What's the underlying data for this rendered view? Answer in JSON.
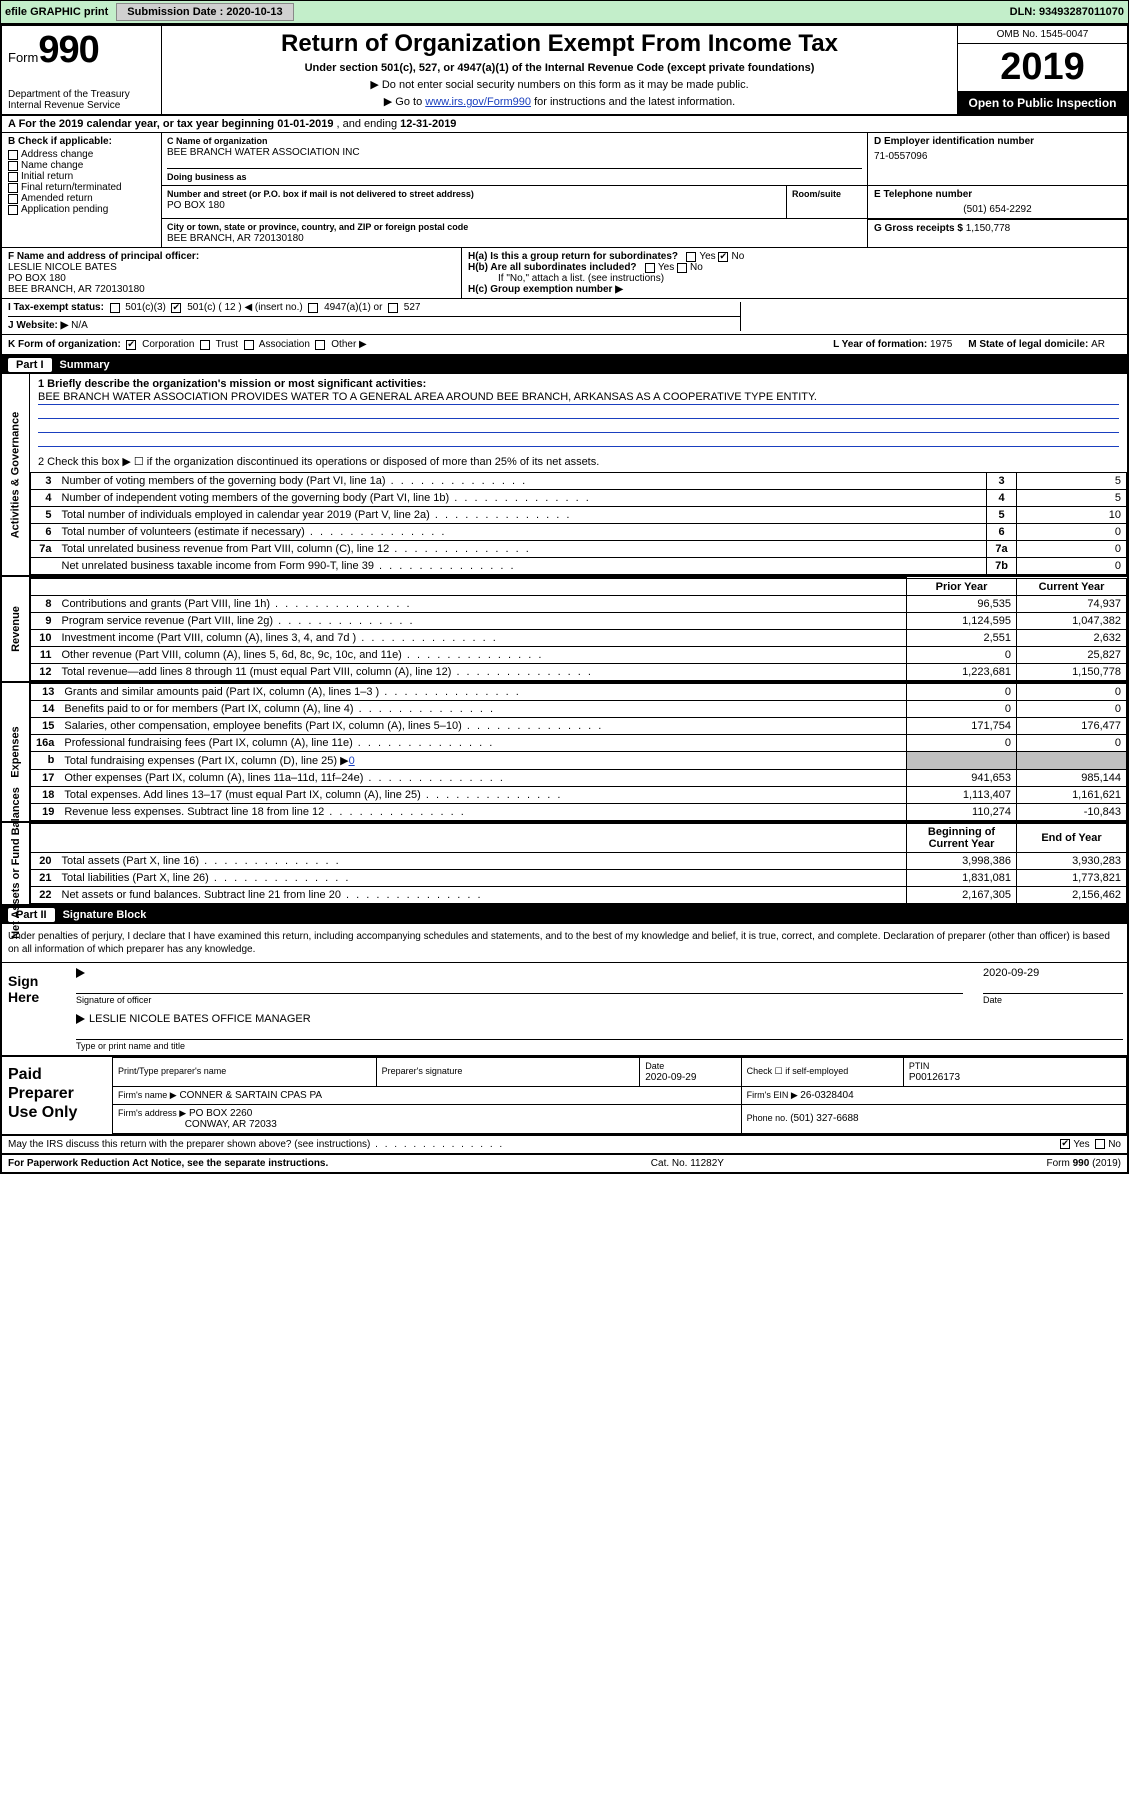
{
  "topbar": {
    "efile": "efile GRAPHIC print",
    "submission_label": "Submission Date : 2020-10-13",
    "dln": "DLN: 93493287011070"
  },
  "header": {
    "form_label": "Form",
    "form_no": "990",
    "dept": "Department of the Treasury\nInternal Revenue Service",
    "title": "Return of Organization Exempt From Income Tax",
    "subtitle": "Under section 501(c), 527, or 4947(a)(1) of the Internal Revenue Code (except private foundations)",
    "note1": "▶ Do not enter social security numbers on this form as it may be made public.",
    "note2_pre": "▶ Go to ",
    "note2_link": "www.irs.gov/Form990",
    "note2_post": " for instructions and the latest information.",
    "omb": "OMB No. 1545-0047",
    "year": "2019",
    "inspect": "Open to Public Inspection"
  },
  "rowA": {
    "text_pre": "A For the 2019 calendar year, or tax year beginning ",
    "begin": "01-01-2019",
    "mid": "   , and ending ",
    "end": "12-31-2019"
  },
  "colB": {
    "label": "B Check if applicable:",
    "items": [
      "Address change",
      "Name change",
      "Initial return",
      "Final return/terminated",
      "Amended return",
      "Application pending"
    ]
  },
  "colC": {
    "name_lbl": "C Name of organization",
    "name": "BEE BRANCH WATER ASSOCIATION INC",
    "dba_lbl": "Doing business as",
    "addr_lbl": "Number and street (or P.O. box if mail is not delivered to street address)",
    "room_lbl": "Room/suite",
    "addr": "PO BOX 180",
    "city_lbl": "City or town, state or province, country, and ZIP or foreign postal code",
    "city": "BEE BRANCH, AR  720130180"
  },
  "colD": {
    "ein_lbl": "D Employer identification number",
    "ein": "71-0557096",
    "tel_lbl": "E Telephone number",
    "tel": "(501) 654-2292",
    "gross_lbl": "G Gross receipts $ ",
    "gross": "1,150,778"
  },
  "rowF": {
    "lbl": "F  Name and address of principal officer:",
    "name": "LESLIE NICOLE BATES",
    "addr1": "PO BOX 180",
    "addr2": "BEE BRANCH, AR  720130180"
  },
  "rowH": {
    "ha": "H(a)  Is this a group return for subordinates?",
    "ha_yes": "Yes",
    "ha_no": "No",
    "hb": "H(b)  Are all subordinates included?",
    "hb_yes": "Yes",
    "hb_no": "No",
    "hb_note": "If \"No,\" attach a list. (see instructions)",
    "hc": "H(c)  Group exemption number ▶"
  },
  "rowI": {
    "lbl": "I   Tax-exempt status:",
    "c3": "501(c)(3)",
    "c_lbl": "501(c) ( 12 ) ◀ (insert no.)",
    "a47": "4947(a)(1) or",
    "s527": "527"
  },
  "rowJ": {
    "lbl": "J   Website: ▶",
    "val": "N/A"
  },
  "rowK": {
    "lbl": "K Form of organization:",
    "corp": "Corporation",
    "trust": "Trust",
    "assoc": "Association",
    "other": "Other ▶",
    "L_lbl": "L Year of formation: ",
    "L_val": "1975",
    "M_lbl": "M State of legal domicile: ",
    "M_val": "AR"
  },
  "part1": {
    "hdr_no": "Part I",
    "hdr_title": "Summary",
    "side_ag": "Activities & Governance",
    "side_rev": "Revenue",
    "side_exp": "Expenses",
    "side_net": "Net Assets or Fund Balances",
    "q1_lbl": "1   Briefly describe the organization's mission or most significant activities:",
    "q1_val": "BEE BRANCH WATER ASSOCIATION PROVIDES WATER TO A GENERAL AREA AROUND BEE BRANCH, ARKANSAS AS A COOPERATIVE TYPE ENTITY.",
    "q2": "2   Check this box ▶ ☐  if the organization discontinued its operations or disposed of more than 25% of its net assets.",
    "rows_ag": [
      {
        "n": "3",
        "d": "Number of voting members of the governing body (Part VI, line 1a)",
        "box": "3",
        "v": "5"
      },
      {
        "n": "4",
        "d": "Number of independent voting members of the governing body (Part VI, line 1b)",
        "box": "4",
        "v": "5"
      },
      {
        "n": "5",
        "d": "Total number of individuals employed in calendar year 2019 (Part V, line 2a)",
        "box": "5",
        "v": "10"
      },
      {
        "n": "6",
        "d": "Total number of volunteers (estimate if necessary)",
        "box": "6",
        "v": "0"
      },
      {
        "n": "7a",
        "d": "Total unrelated business revenue from Part VIII, column (C), line 12",
        "box": "7a",
        "v": "0"
      },
      {
        "n": "",
        "d": "Net unrelated business taxable income from Form 990-T, line 39",
        "box": "7b",
        "v": "0"
      }
    ],
    "col_prior": "Prior Year",
    "col_curr": "Current Year",
    "rows_rev": [
      {
        "n": "8",
        "d": "Contributions and grants (Part VIII, line 1h)",
        "p": "96,535",
        "c": "74,937"
      },
      {
        "n": "9",
        "d": "Program service revenue (Part VIII, line 2g)",
        "p": "1,124,595",
        "c": "1,047,382"
      },
      {
        "n": "10",
        "d": "Investment income (Part VIII, column (A), lines 3, 4, and 7d )",
        "p": "2,551",
        "c": "2,632"
      },
      {
        "n": "11",
        "d": "Other revenue (Part VIII, column (A), lines 5, 6d, 8c, 9c, 10c, and 11e)",
        "p": "0",
        "c": "25,827"
      },
      {
        "n": "12",
        "d": "Total revenue—add lines 8 through 11 (must equal Part VIII, column (A), line 12)",
        "p": "1,223,681",
        "c": "1,150,778"
      }
    ],
    "rows_exp": [
      {
        "n": "13",
        "d": "Grants and similar amounts paid (Part IX, column (A), lines 1–3 )",
        "p": "0",
        "c": "0"
      },
      {
        "n": "14",
        "d": "Benefits paid to or for members (Part IX, column (A), line 4)",
        "p": "0",
        "c": "0"
      },
      {
        "n": "15",
        "d": "Salaries, other compensation, employee benefits (Part IX, column (A), lines 5–10)",
        "p": "171,754",
        "c": "176,477"
      },
      {
        "n": "16a",
        "d": "Professional fundraising fees (Part IX, column (A), line 11e)",
        "p": "0",
        "c": "0"
      }
    ],
    "row_16b": {
      "n": "b",
      "d": "Total fundraising expenses (Part IX, column (D), line 25) ▶",
      "v": "0"
    },
    "rows_exp2": [
      {
        "n": "17",
        "d": "Other expenses (Part IX, column (A), lines 11a–11d, 11f–24e)",
        "p": "941,653",
        "c": "985,144"
      },
      {
        "n": "18",
        "d": "Total expenses. Add lines 13–17 (must equal Part IX, column (A), line 25)",
        "p": "1,113,407",
        "c": "1,161,621"
      },
      {
        "n": "19",
        "d": "Revenue less expenses. Subtract line 18 from line 12",
        "p": "110,274",
        "c": "-10,843"
      }
    ],
    "col_beg": "Beginning of Current Year",
    "col_end": "End of Year",
    "rows_net": [
      {
        "n": "20",
        "d": "Total assets (Part X, line 16)",
        "p": "3,998,386",
        "c": "3,930,283"
      },
      {
        "n": "21",
        "d": "Total liabilities (Part X, line 26)",
        "p": "1,831,081",
        "c": "1,773,821"
      },
      {
        "n": "22",
        "d": "Net assets or fund balances. Subtract line 21 from line 20",
        "p": "2,167,305",
        "c": "2,156,462"
      }
    ]
  },
  "part2": {
    "hdr_no": "Part II",
    "hdr_title": "Signature Block",
    "decl": "Under penalties of perjury, I declare that I have examined this return, including accompanying schedules and statements, and to the best of my knowledge and belief, it is true, correct, and complete. Declaration of preparer (other than officer) is based on all information of which preparer has any knowledge.",
    "sign_here": "Sign Here",
    "sig_officer": "Signature of officer",
    "date_lbl": "Date",
    "date_val": "2020-09-29",
    "name_title": "LESLIE NICOLE BATES  OFFICE MANAGER",
    "name_title_lbl": "Type or print name and title",
    "paid": "Paid Preparer Use Only",
    "pt_name_lbl": "Print/Type preparer's name",
    "pt_sig_lbl": "Preparer's signature",
    "pt_date_lbl": "Date",
    "pt_date": "2020-09-29",
    "pt_check": "Check ☐ if self-employed",
    "ptin_lbl": "PTIN",
    "ptin": "P00126173",
    "firm_name_lbl": "Firm's name    ▶",
    "firm_name": "CONNER & SARTAIN CPAS PA",
    "firm_ein_lbl": "Firm's EIN ▶ ",
    "firm_ein": "26-0328404",
    "firm_addr_lbl": "Firm's address ▶",
    "firm_addr1": "PO BOX 2260",
    "firm_addr2": "CONWAY, AR  72033",
    "firm_phone_lbl": "Phone no. ",
    "firm_phone": "(501) 327-6688",
    "discuss": "May the IRS discuss this return with the preparer shown above? (see instructions)",
    "discuss_yes": "Yes",
    "discuss_no": "No"
  },
  "footer": {
    "left": "For Paperwork Reduction Act Notice, see the separate instructions.",
    "mid": "Cat. No. 11282Y",
    "right": "Form 990 (2019)"
  }
}
